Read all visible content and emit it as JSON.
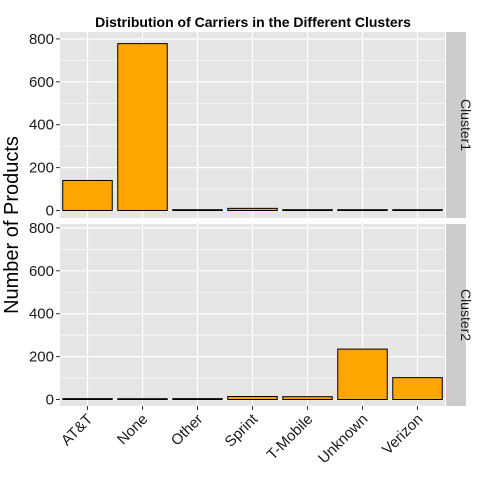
{
  "chart_data": {
    "type": "bar",
    "title": "Distribution of Carriers in the Different Clusters",
    "ylabel": "Number of Products",
    "xlabel": "",
    "categories": [
      "AT&T",
      "None",
      "Other",
      "Sprint",
      "T-Mobile",
      "Unknown",
      "Verizon"
    ],
    "ylim": [
      0,
      820
    ],
    "yticks": [
      0,
      200,
      400,
      600,
      800
    ],
    "yticks_labels": [
      "0",
      "200",
      "400",
      "600",
      "800"
    ],
    "bar_fill": "#FFA500",
    "bar_stroke": "#000000",
    "panel_bg": "#E5E5E5",
    "grid_color": "#FFFFFF",
    "strip_bg": "#CCCCCC",
    "facets": [
      {
        "name": "Cluster1",
        "values": [
          140,
          778,
          3,
          10,
          3,
          2,
          2
        ]
      },
      {
        "name": "Cluster2",
        "values": [
          4,
          3,
          4,
          14,
          13,
          235,
          102
        ]
      }
    ]
  }
}
